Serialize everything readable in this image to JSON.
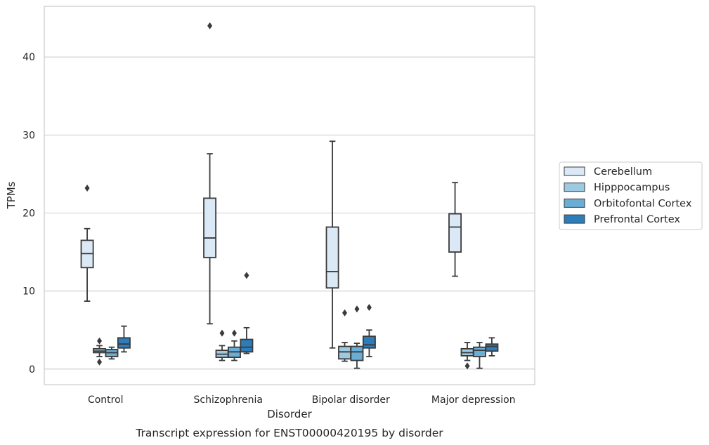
{
  "chart_data": {
    "type": "box",
    "title": "",
    "caption": "Transcript expression for ENST00000420195 by disorder",
    "xlabel": "Disorder",
    "ylabel": "TPMs",
    "ylim": [
      -2,
      46.5
    ],
    "yticks": [
      0,
      10,
      20,
      30,
      40
    ],
    "grid": true,
    "legend_position": "right",
    "categories": [
      "Control",
      "Schizophrenia",
      "Bipolar disorder",
      "Major depression"
    ],
    "series": [
      {
        "name": "Cerebellum",
        "color": "#dbe9f6",
        "boxes": [
          {
            "whislo": 8.7,
            "q1": 13.0,
            "med": 14.8,
            "q3": 16.5,
            "whishi": 18.0,
            "fliers": [
              23.2
            ]
          },
          {
            "whislo": 5.8,
            "q1": 14.3,
            "med": 16.8,
            "q3": 21.9,
            "whishi": 27.6,
            "fliers": [
              44.0
            ]
          },
          {
            "whislo": 2.7,
            "q1": 10.4,
            "med": 12.5,
            "q3": 18.2,
            "whishi": 29.2,
            "fliers": []
          },
          {
            "whislo": 11.9,
            "q1": 15.0,
            "med": 18.2,
            "q3": 19.9,
            "whishi": 23.9,
            "fliers": []
          }
        ]
      },
      {
        "name": "Hipppocampus",
        "color": "#9ecae1",
        "boxes": [
          {
            "whislo": 1.6,
            "q1": 2.1,
            "med": 2.3,
            "q3": 2.6,
            "whishi": 3.0,
            "fliers": [
              3.6,
              0.9
            ]
          },
          {
            "whislo": 1.1,
            "q1": 1.5,
            "med": 1.9,
            "q3": 2.4,
            "whishi": 3.0,
            "fliers": [
              4.6
            ]
          },
          {
            "whislo": 1.0,
            "q1": 1.3,
            "med": 2.2,
            "q3": 2.9,
            "whishi": 3.4,
            "fliers": [
              7.2
            ]
          },
          {
            "whislo": 1.1,
            "q1": 1.7,
            "med": 2.1,
            "q3": 2.6,
            "whishi": 3.4,
            "fliers": [
              0.4
            ]
          }
        ]
      },
      {
        "name": "Orbitofontal Cortex",
        "color": "#6aaed6",
        "boxes": [
          {
            "whislo": 1.3,
            "q1": 1.6,
            "med": 2.1,
            "q3": 2.5,
            "whishi": 2.8,
            "fliers": []
          },
          {
            "whislo": 1.1,
            "q1": 1.5,
            "med": 2.2,
            "q3": 2.8,
            "whishi": 3.6,
            "fliers": [
              4.6
            ]
          },
          {
            "whislo": 0.1,
            "q1": 1.1,
            "med": 2.2,
            "q3": 2.9,
            "whishi": 3.3,
            "fliers": [
              7.7
            ]
          },
          {
            "whislo": 0.1,
            "q1": 1.6,
            "med": 2.4,
            "q3": 2.8,
            "whishi": 3.4,
            "fliers": []
          }
        ]
      },
      {
        "name": "Prefrontal Cortex",
        "color": "#2d7dbb",
        "boxes": [
          {
            "whislo": 2.2,
            "q1": 2.7,
            "med": 3.2,
            "q3": 4.0,
            "whishi": 5.5,
            "fliers": []
          },
          {
            "whislo": 2.0,
            "q1": 2.2,
            "med": 2.8,
            "q3": 3.8,
            "whishi": 5.3,
            "fliers": [
              12.0
            ]
          },
          {
            "whislo": 1.6,
            "q1": 2.7,
            "med": 3.1,
            "q3": 4.2,
            "whishi": 5.0,
            "fliers": [
              7.9
            ]
          },
          {
            "whislo": 1.7,
            "q1": 2.3,
            "med": 2.9,
            "q3": 3.2,
            "whishi": 4.0,
            "fliers": []
          }
        ]
      }
    ]
  }
}
